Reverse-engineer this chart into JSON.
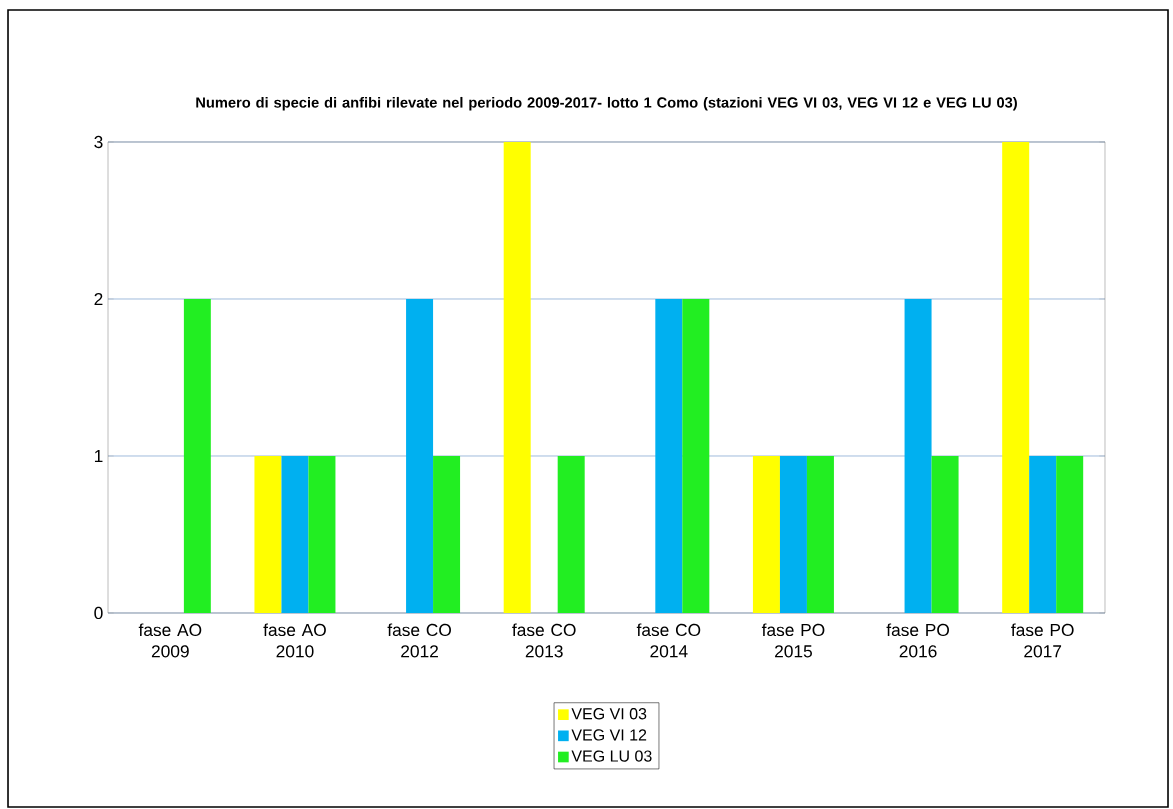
{
  "chart_data": {
    "type": "bar",
    "title": "Numero di specie di anfibi rilevate nel periodo 2009-2017- lotto 1 Como (stazioni VEG VI 03, VEG VI 12 e VEG LU 03)",
    "categories": [
      "fase AO 2009",
      "fase AO 2010",
      "fase CO 2012",
      "fase CO 2013",
      "fase CO 2014",
      "fase PO 2015",
      "fase PO 2016",
      "fase PO 2017"
    ],
    "series": [
      {
        "name": "VEG VI 03",
        "color": "#ffff00",
        "values": [
          0,
          1,
          0,
          3,
          0,
          1,
          0,
          3
        ]
      },
      {
        "name": "VEG VI 12",
        "color": "#00b0f0",
        "values": [
          0,
          1,
          2,
          0,
          2,
          1,
          2,
          1
        ]
      },
      {
        "name": "VEG LU 03",
        "color": "#22ee22",
        "values": [
          2,
          1,
          1,
          1,
          2,
          1,
          1,
          1
        ]
      }
    ],
    "ylim": [
      0,
      3
    ],
    "yticks": [
      0,
      1,
      2,
      3
    ],
    "grid": "y",
    "legend": "bottom"
  }
}
